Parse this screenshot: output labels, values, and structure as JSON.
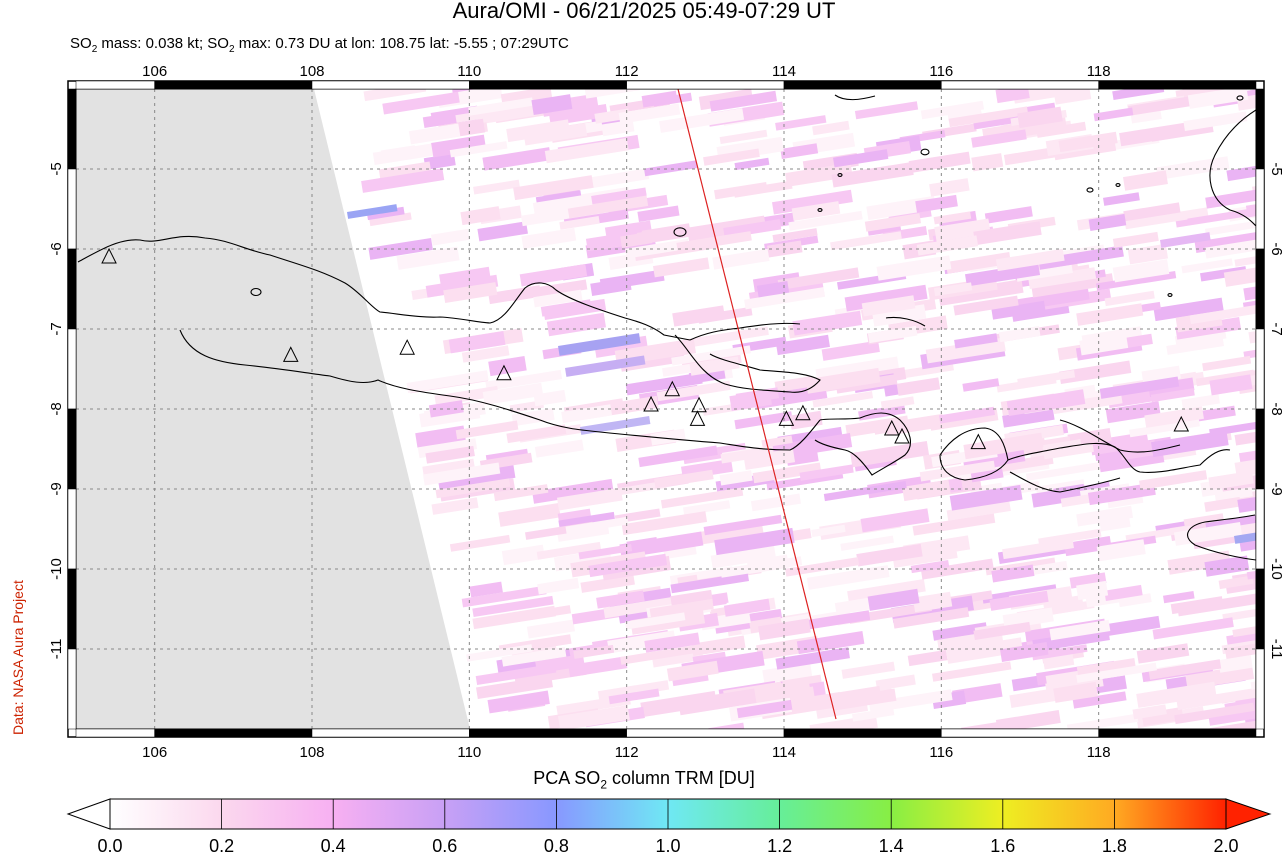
{
  "title": "Aura/OMI - 06/21/2025 05:49-07:29 UT",
  "subtitle": {
    "part1": "SO",
    "sub1": "2",
    "part2": " mass: 0.038 kt; SO",
    "sub2": "2",
    "part3": " max: 0.73 DU at lon: 108.75 lat: -5.55 ; 07:29UTC"
  },
  "credit": "Data: NASA Aura Project",
  "colorbar_label": {
    "part1": "PCA SO",
    "sub": "2",
    "part2": " column TRM [DU]"
  },
  "map": {
    "lon_range": [
      105,
      120
    ],
    "lat_range": [
      -12,
      -4
    ],
    "lon_ticks": [
      "106",
      "108",
      "110",
      "112",
      "114",
      "116",
      "118"
    ],
    "lat_ticks": [
      "-5",
      "-6",
      "-7",
      "-8",
      "-9",
      "-10",
      "-11"
    ],
    "no_data_fill": "#e2e2e2",
    "orbit_track_color": "#dd2222"
  },
  "colorbar": {
    "ticks": [
      "0.0",
      "0.2",
      "0.4",
      "0.6",
      "0.8",
      "1.0",
      "1.2",
      "1.4",
      "1.6",
      "1.8",
      "2.0"
    ],
    "colors": [
      "#ffffff",
      "#fbd8ee",
      "#f7b0f2",
      "#c8a0f5",
      "#8898ff",
      "#6fe8f4",
      "#66ee99",
      "#88ee44",
      "#eeee22",
      "#ffaa22",
      "#ff2200"
    ]
  },
  "volcanoes": [
    {
      "lon": 105.42,
      "lat": -6.1
    },
    {
      "lon": 107.73,
      "lat": -7.33
    },
    {
      "lon": 109.21,
      "lat": -7.24
    },
    {
      "lon": 110.44,
      "lat": -7.56
    },
    {
      "lon": 112.31,
      "lat": -7.95
    },
    {
      "lon": 112.58,
      "lat": -7.76
    },
    {
      "lon": 112.92,
      "lat": -7.96
    },
    {
      "lon": 112.9,
      "lat": -8.13
    },
    {
      "lon": 114.03,
      "lat": -8.13
    },
    {
      "lon": 114.24,
      "lat": -8.06
    },
    {
      "lon": 115.37,
      "lat": -8.25
    },
    {
      "lon": 115.5,
      "lat": -8.35
    },
    {
      "lon": 116.47,
      "lat": -8.42
    },
    {
      "lon": 119.05,
      "lat": -8.2
    }
  ]
}
